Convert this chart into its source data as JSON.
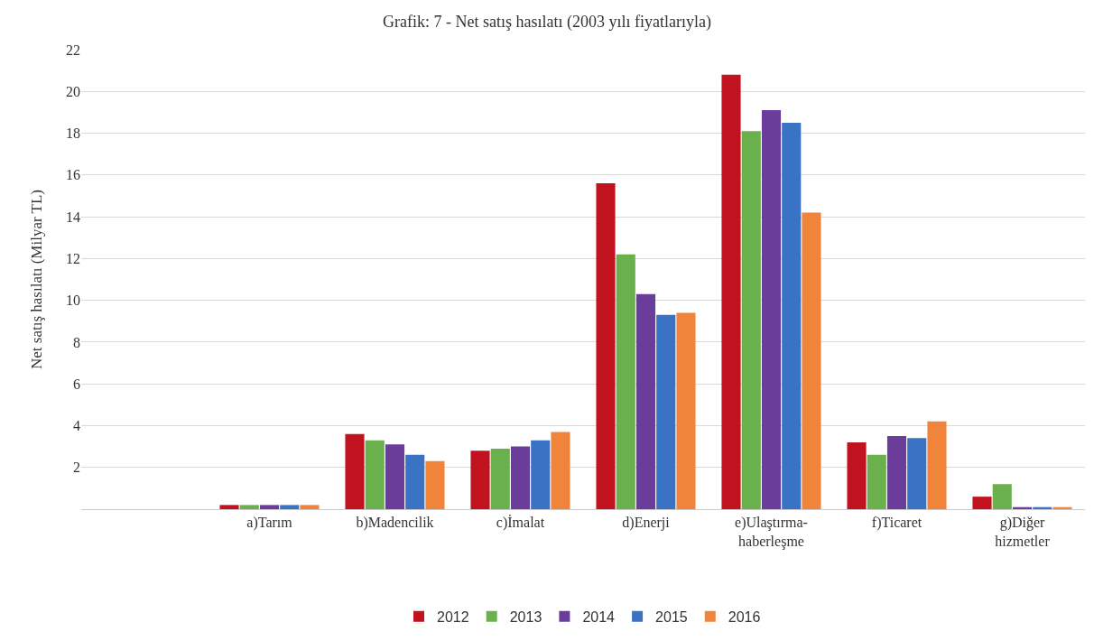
{
  "chart_data": {
    "type": "bar",
    "title": "Grafik: 7 - Net satış hasılatı (2003 yılı fiyatlarıyla)",
    "ylabel": "Net satış hasılatı (Milyar TL)",
    "categories": [
      null,
      "a)Tarım",
      "b)Madencilik",
      "c)İmalat",
      "d)Enerji",
      "e)Ulaştırma-\nhaberleşme",
      "f)Ticaret",
      "g)Diğer\nhizmetler"
    ],
    "series": [
      {
        "name": "2012",
        "color": "#c0121f",
        "values": [
          null,
          0.2,
          3.6,
          2.8,
          15.6,
          20.8,
          3.2,
          0.6
        ]
      },
      {
        "name": "2013",
        "color": "#6ab04c",
        "values": [
          null,
          0.2,
          3.3,
          2.9,
          12.2,
          18.1,
          2.6,
          1.2
        ]
      },
      {
        "name": "2014",
        "color": "#6a3d9a",
        "values": [
          null,
          0.2,
          3.1,
          3.0,
          10.3,
          19.1,
          3.5,
          0.1
        ]
      },
      {
        "name": "2015",
        "color": "#3a73c4",
        "values": [
          null,
          0.2,
          2.6,
          3.3,
          9.3,
          18.5,
          3.4,
          0.1
        ]
      },
      {
        "name": "2016",
        "color": "#f0843a",
        "values": [
          null,
          0.2,
          2.3,
          3.7,
          9.4,
          14.2,
          4.2,
          0.1
        ]
      }
    ],
    "ylim": [
      0,
      22
    ],
    "yticks": [
      2,
      4,
      6,
      8,
      10,
      12,
      14,
      16,
      18,
      20,
      22
    ],
    "grid": "y",
    "legend": "bottom"
  }
}
